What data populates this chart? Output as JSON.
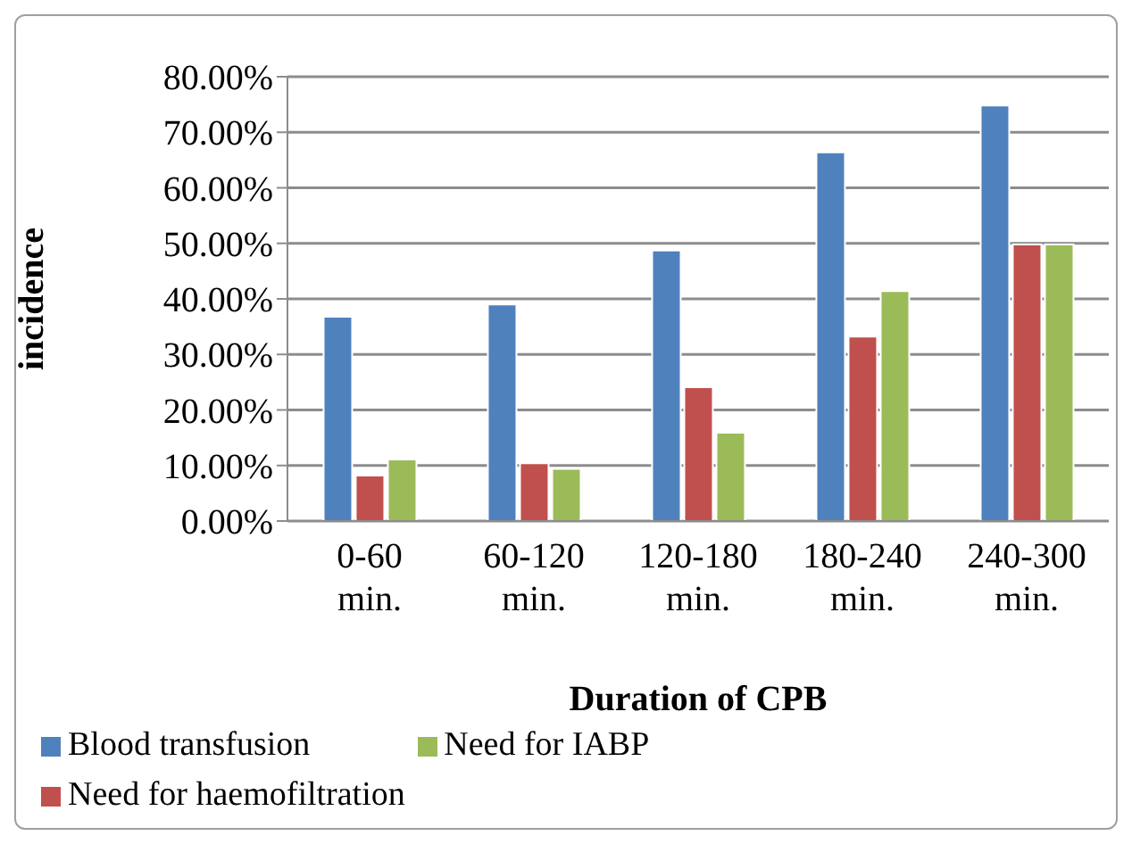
{
  "chart_data": {
    "type": "bar",
    "xlabel": "Duration of CPB",
    "ylabel": "incidence",
    "categories": [
      "0-60 min.",
      "60-120 min.",
      "120-180 min.",
      "180-240 min.",
      "240-300 min."
    ],
    "series": [
      {
        "name": "Blood transfusion",
        "color": "#4f81bd",
        "values": [
          36.8,
          39.0,
          48.7,
          66.4,
          74.8
        ]
      },
      {
        "name": "Need for haemofiltration",
        "color": "#c0504d",
        "values": [
          8.2,
          10.4,
          24.1,
          33.2,
          49.8
        ]
      },
      {
        "name": "Need for IABP",
        "color": "#9bbb59",
        "values": [
          11.1,
          9.4,
          15.9,
          41.4,
          49.8
        ]
      }
    ],
    "ylim": [
      0,
      80
    ],
    "yticks": [
      {
        "value": 0,
        "label": "0.00%"
      },
      {
        "value": 10,
        "label": "10.00%"
      },
      {
        "value": 20,
        "label": "20.00%"
      },
      {
        "value": 30,
        "label": "30.00%"
      },
      {
        "value": 40,
        "label": "40.00%"
      },
      {
        "value": 50,
        "label": "50.00%"
      },
      {
        "value": 60,
        "label": "60.00%"
      },
      {
        "value": 70,
        "label": "70.00%"
      },
      {
        "value": 80,
        "label": "80.00%"
      }
    ],
    "grid": "y",
    "legend": "bottom"
  }
}
